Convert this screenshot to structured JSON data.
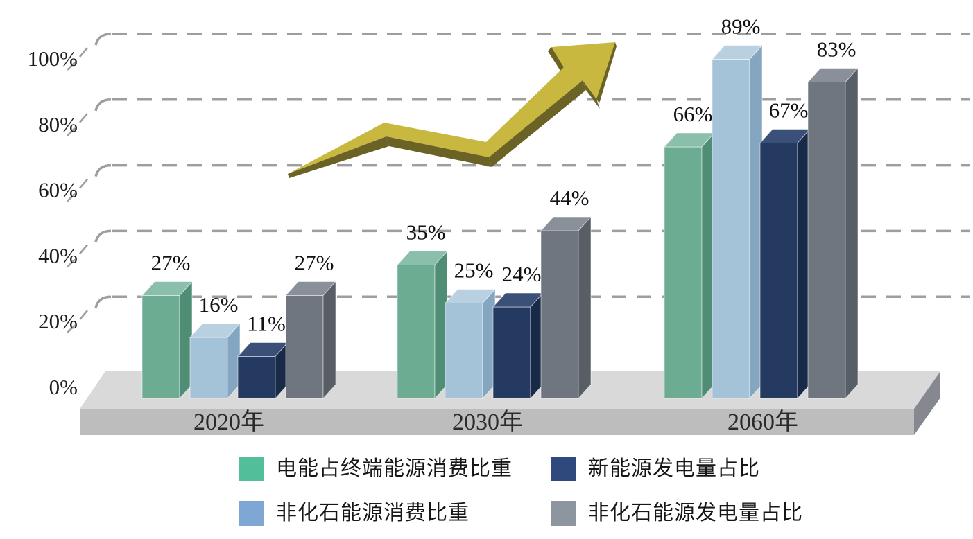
{
  "chart_data": {
    "type": "bar",
    "style": "3d-column-groups",
    "title": "",
    "xlabel": "",
    "ylabel": "",
    "categories": [
      "2020年",
      "2030年",
      "2060年"
    ],
    "series": [
      {
        "name": "电能占终端能源消费比重",
        "legend_color": "#52bf9a",
        "front": "#6cac93",
        "side": "#4f8d75",
        "top": "#8ac0ab",
        "values": [
          27,
          35,
          66
        ]
      },
      {
        "name": "非化石能源消费比重",
        "legend_color": "#7ea7d3",
        "front": "#a5c3d8",
        "side": "#84a6c0",
        "top": "#b8d0e0",
        "values": [
          16,
          25,
          89
        ]
      },
      {
        "name": "新能源发电量占比",
        "legend_color": "#30497c",
        "front": "#253a61",
        "side": "#192a48",
        "top": "#3b5078",
        "values": [
          11,
          24,
          67
        ]
      },
      {
        "name": "非化石能源发电量占比",
        "legend_color": "#8d95a0",
        "front": "#6f767f",
        "side": "#575e66",
        "top": "#899099",
        "values": [
          27,
          44,
          83
        ]
      }
    ],
    "value_label_format": "{v}%",
    "y_ticks": [
      "0%",
      "20%",
      "40%",
      "60%",
      "80%",
      "100%"
    ],
    "ylim": [
      0,
      100
    ],
    "grid": "dashed-horizontal",
    "legend_position": "bottom-two-columns",
    "annotations": [
      {
        "type": "rising-trend-arrow",
        "color": "#c9b83f",
        "shadow_color": "#6b6325"
      }
    ]
  },
  "decor": {
    "floor": {
      "top_color": "#d9d9d9",
      "front_color": "#bdbdbd",
      "side_color": "#85898f"
    },
    "axis": {
      "grid_color": "#9e9e9e",
      "label_color": "#1c1c1c",
      "category_label_color": "#2a2a2a"
    }
  }
}
